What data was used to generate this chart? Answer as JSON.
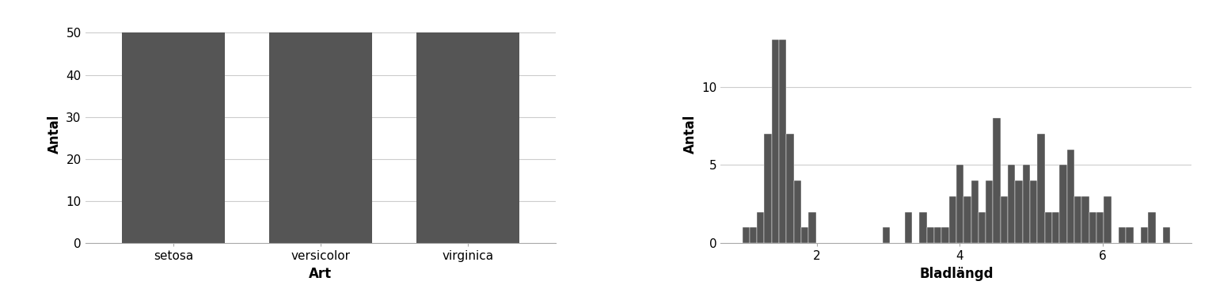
{
  "bar_categories": [
    "setosa",
    "versicolor",
    "virginica"
  ],
  "bar_values": [
    50,
    50,
    50
  ],
  "bar_color": "#555555",
  "bar_xlabel": "Art",
  "bar_ylabel": "Antal",
  "bar_ylim": [
    0,
    52
  ],
  "bar_yticks": [
    0,
    10,
    20,
    30,
    40,
    50
  ],
  "hist_xlabel": "Bladlängd",
  "hist_ylabel": "Antal",
  "hist_color": "#555555",
  "hist_ylim": [
    0,
    14
  ],
  "hist_yticks": [
    0,
    5,
    10
  ],
  "hist_xticks": [
    2,
    4,
    6
  ],
  "background_color": "#ffffff",
  "grid_color": "#cccccc",
  "petal_lengths": [
    1.4,
    1.4,
    1.3,
    1.5,
    1.4,
    1.7,
    1.4,
    1.5,
    1.4,
    1.5,
    1.5,
    1.6,
    1.4,
    1.1,
    1.2,
    1.5,
    1.3,
    1.4,
    1.7,
    1.5,
    1.7,
    1.5,
    1.0,
    1.7,
    1.9,
    1.6,
    1.6,
    1.5,
    1.4,
    1.6,
    1.6,
    1.5,
    1.5,
    1.4,
    1.5,
    1.2,
    1.3,
    1.4,
    1.3,
    1.5,
    1.3,
    1.3,
    1.3,
    1.6,
    1.9,
    1.4,
    1.6,
    1.4,
    1.5,
    1.4,
    4.7,
    4.5,
    4.9,
    4.0,
    4.6,
    4.5,
    4.7,
    3.3,
    4.6,
    3.9,
    3.5,
    4.2,
    4.0,
    4.7,
    3.6,
    4.4,
    4.5,
    4.1,
    4.5,
    3.9,
    4.8,
    4.0,
    4.9,
    4.7,
    4.3,
    4.4,
    4.8,
    5.0,
    4.5,
    3.5,
    3.8,
    3.7,
    3.9,
    5.1,
    4.5,
    4.5,
    4.7,
    4.4,
    4.1,
    4.0,
    4.4,
    4.6,
    4.0,
    3.3,
    4.2,
    4.2,
    4.2,
    4.3,
    3.0,
    4.1,
    6.0,
    5.1,
    5.9,
    5.6,
    5.8,
    6.6,
    4.5,
    6.3,
    5.8,
    6.1,
    5.1,
    5.3,
    5.5,
    5.0,
    5.1,
    5.3,
    5.5,
    6.7,
    6.9,
    5.0,
    5.7,
    4.9,
    6.7,
    4.9,
    5.7,
    6.0,
    4.8,
    4.9,
    5.6,
    5.8,
    6.1,
    6.4,
    5.6,
    5.1,
    5.6,
    6.1,
    5.6,
    5.5,
    4.8,
    5.4,
    5.6,
    5.1,
    5.9,
    5.7,
    5.2,
    5.0,
    5.2,
    5.4,
    5.1,
    1.8
  ],
  "hist_bins_min": 1.0,
  "hist_bins_max": 6.9,
  "hist_num_bins": 58
}
